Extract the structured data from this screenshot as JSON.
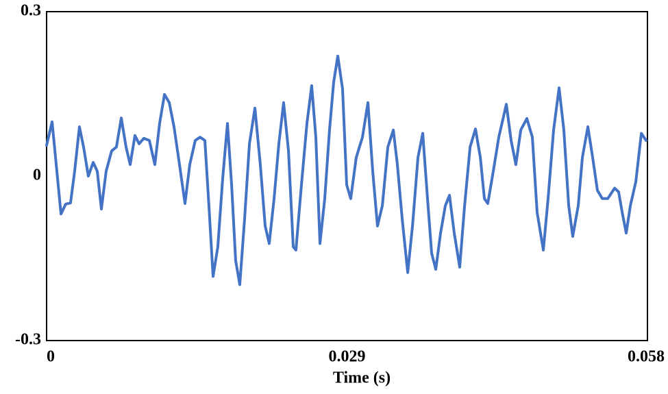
{
  "chart_data": {
    "type": "line",
    "xlabel": "Time (s)",
    "x": [
      0,
      0.00053,
      0.00093,
      0.00139,
      0.00185,
      0.00231,
      0.00271,
      0.00317,
      0.00357,
      0.00403,
      0.0045,
      0.00489,
      0.00529,
      0.00575,
      0.00628,
      0.00674,
      0.00721,
      0.00767,
      0.00807,
      0.00853,
      0.00893,
      0.00939,
      0.00992,
      0.01045,
      0.01091,
      0.01138,
      0.01184,
      0.0123,
      0.01283,
      0.01336,
      0.01382,
      0.01435,
      0.01481,
      0.01528,
      0.01567,
      0.01607,
      0.01653,
      0.017,
      0.01746,
      0.01786,
      0.01825,
      0.01865,
      0.01911,
      0.01958,
      0.02011,
      0.02063,
      0.0211,
      0.02149,
      0.02196,
      0.02242,
      0.02288,
      0.02335,
      0.02381,
      0.02407,
      0.0246,
      0.02513,
      0.02559,
      0.02599,
      0.02639,
      0.02685,
      0.02731,
      0.02771,
      0.02811,
      0.02857,
      0.02897,
      0.02936,
      0.02989,
      0.03049,
      0.03102,
      0.03148,
      0.03194,
      0.03241,
      0.03294,
      0.03347,
      0.03386,
      0.03433,
      0.03486,
      0.03532,
      0.03585,
      0.03631,
      0.03677,
      0.03717,
      0.03757,
      0.03803,
      0.03849,
      0.03889,
      0.03935,
      0.03988,
      0.04035,
      0.04088,
      0.0414,
      0.04187,
      0.04226,
      0.04259,
      0.04312,
      0.04365,
      0.04438,
      0.04484,
      0.0453,
      0.04577,
      0.04636,
      0.04689,
      0.04735,
      0.04795,
      0.04841,
      0.04894,
      0.04947,
      0.04993,
      0.0504,
      0.05079,
      0.05132,
      0.05172,
      0.05225,
      0.05271,
      0.05317,
      0.05364,
      0.05417,
      0.05483,
      0.05522,
      0.05556,
      0.05595,
      0.05635,
      0.05688,
      0.05741,
      0.05787
    ],
    "series": [
      {
        "color": "#4472c4",
        "values": [
          0.056,
          0.099,
          0.021,
          -0.069,
          -0.051,
          -0.049,
          0.009,
          0.09,
          0.053,
          0,
          0.025,
          0.009,
          -0.06,
          0.009,
          0.046,
          0.053,
          0.106,
          0.053,
          0.021,
          0.074,
          0.059,
          0.069,
          0.065,
          0.021,
          0.096,
          0.149,
          0.134,
          0.09,
          0.021,
          -0.05,
          0.021,
          0.065,
          0.071,
          0.065,
          -0.054,
          -0.183,
          -0.129,
          -0.004,
          0.096,
          -0.016,
          -0.154,
          -0.198,
          -0.079,
          0.059,
          0.124,
          0.021,
          -0.091,
          -0.123,
          -0.041,
          0.059,
          0.134,
          0.046,
          -0.129,
          -0.135,
          -0.016,
          0.096,
          0.165,
          0.071,
          -0.123,
          -0.041,
          0.084,
          0.171,
          0.219,
          0.159,
          -0.016,
          -0.041,
          0.034,
          0.071,
          0.134,
          0.009,
          -0.091,
          -0.054,
          0.053,
          0.084,
          0.021,
          -0.079,
          -0.176,
          -0.091,
          0.034,
          0.078,
          -0.041,
          -0.141,
          -0.17,
          -0.104,
          -0.054,
          -0.035,
          -0.104,
          -0.166,
          -0.054,
          0.053,
          0.086,
          0.034,
          -0.041,
          -0.05,
          0.009,
          0.071,
          0.131,
          0.065,
          0.021,
          0.084,
          0.105,
          0.071,
          -0.066,
          -0.135,
          -0.041,
          0.084,
          0.161,
          0.084,
          -0.054,
          -0.11,
          -0.054,
          0.034,
          0.09,
          0.034,
          -0.026,
          -0.041,
          -0.041,
          -0.022,
          -0.029,
          -0.066,
          -0.104,
          -0.054,
          -0.01,
          0.078,
          0.065
        ]
      }
    ],
    "xlim": [
      0,
      0.058
    ],
    "xticks": [
      0,
      0.029,
      0.058
    ],
    "ylim": [
      -0.3,
      0.3
    ],
    "yticks": [
      -0.3,
      0,
      0.3
    ],
    "grid": false
  }
}
